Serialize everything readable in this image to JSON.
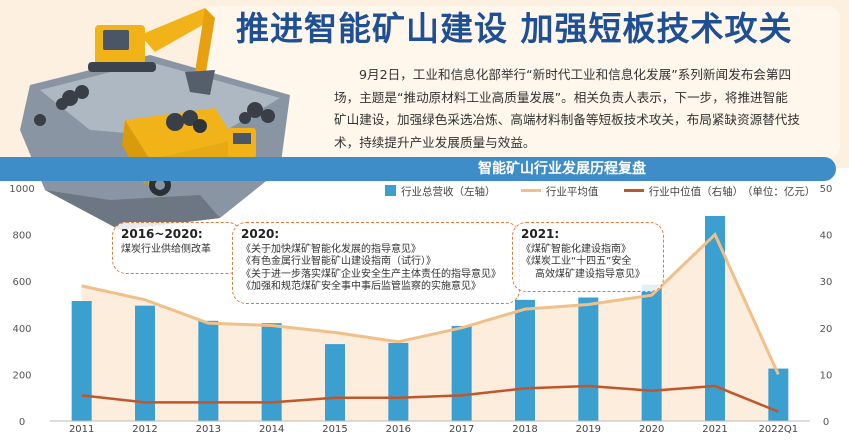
{
  "header": {
    "title": "推进智能矿山建设  加强短板技术攻关",
    "paragraph_lines": [
      "9月2日，工业和信息化部举行“新时代工业和信息化发展”系列新闻发布会第四",
      "场，主题是“推动原材料工业高质量发展”。相关负责人表示，下一步，将推进智能",
      "矿山建设，加强绿色采选冶炼、高端材料制备等短板技术攻关，布局紧缺资源替代技",
      "术，持续提升产业发展质量与效益。"
    ]
  },
  "colors": {
    "title_blue": "#1f4f95",
    "ribbon": "#3f8dc8",
    "bar": "#3b9fd0",
    "avg_line": "#f1bf8a",
    "median_line": "#c0562b",
    "note_border": "#e07a3a"
  },
  "annotations": [
    {
      "year": "2016~2020:",
      "lines": [
        "煤炭行业供给侧改革"
      ]
    },
    {
      "year": "2020:",
      "lines": [
        "《关于加快煤矿智能化发展的指导意见》",
        "《有色金属行业智能矿山建设指南（试行）》",
        "《关于进一步落实煤矿企业安全生产主体责任的指导意见》",
        "《加强和规范煤矿安全事中事后监管监察的实施意见》"
      ]
    },
    {
      "year": "2021:",
      "lines": [
        "《煤矿智能化建设指南》",
        "《煤炭工业“十四五”安全",
        "高效煤矿建设指导意见》"
      ]
    }
  ],
  "chart_data": {
    "type": "bar",
    "title": "智能矿山行业发展历程复盘",
    "categories": [
      "2011",
      "2012",
      "2013",
      "2014",
      "2015",
      "2016",
      "2017",
      "2018",
      "2019",
      "2020",
      "2021",
      "2022Q1"
    ],
    "series": [
      {
        "name": "行业总营收（左轴）",
        "type": "bar",
        "axis": "left",
        "values": [
          515,
          495,
          430,
          420,
          330,
          335,
          408,
          520,
          530,
          585,
          880,
          225
        ]
      },
      {
        "name": "行业平均值",
        "type": "area-line",
        "axis": "right",
        "values": [
          29,
          26,
          21,
          20.5,
          19,
          17,
          20,
          24,
          25,
          27,
          40,
          10
        ]
      },
      {
        "name": "行业中位值（右轴）",
        "type": "line",
        "axis": "right",
        "values": [
          5.5,
          4,
          4,
          4,
          5,
          5,
          5.5,
          7,
          7.5,
          6.5,
          7.5,
          2
        ]
      }
    ],
    "unit_note": "（单位：亿元）",
    "yleft": {
      "min": 0,
      "max": 1000,
      "ticks": [
        0,
        200,
        400,
        600,
        800,
        1000
      ]
    },
    "yright": {
      "min": 0,
      "max": 50,
      "ticks": [
        0,
        10,
        20,
        30,
        40,
        50
      ]
    },
    "grid": false,
    "legend_position": "top-right"
  }
}
